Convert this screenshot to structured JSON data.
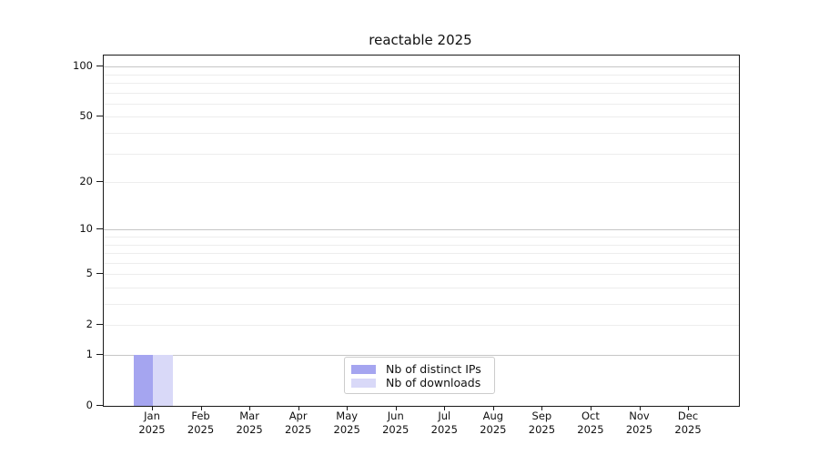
{
  "chart_data": {
    "type": "bar",
    "title": "reactable 2025",
    "x_months": [
      "Jan",
      "Feb",
      "Mar",
      "Apr",
      "May",
      "Jun",
      "Jul",
      "Aug",
      "Sep",
      "Oct",
      "Nov",
      "Dec"
    ],
    "x_year": "2025",
    "yscale": "log1p",
    "ylim": [
      0,
      116
    ],
    "yticks": [
      0,
      1,
      2,
      5,
      10,
      20,
      50,
      100
    ],
    "grid": {
      "major_values": [
        1,
        10,
        100
      ],
      "minor_values": [
        2,
        3,
        4,
        5,
        6,
        7,
        8,
        9,
        20,
        30,
        40,
        50,
        60,
        70,
        80,
        90
      ],
      "major_color": "#c6c6c6",
      "minor_color": "#ededed"
    },
    "series": [
      {
        "name": "Nb of distinct IPs",
        "color": "#a5a5f0",
        "values": [
          1,
          0,
          0,
          0,
          0,
          0,
          0,
          0,
          0,
          0,
          0,
          0
        ]
      },
      {
        "name": "Nb of downloads",
        "color": "#d9d9f8",
        "values": [
          1,
          0,
          0,
          0,
          0,
          0,
          0,
          0,
          0,
          0,
          0,
          0
        ]
      }
    ],
    "legend_position": "lower center"
  }
}
